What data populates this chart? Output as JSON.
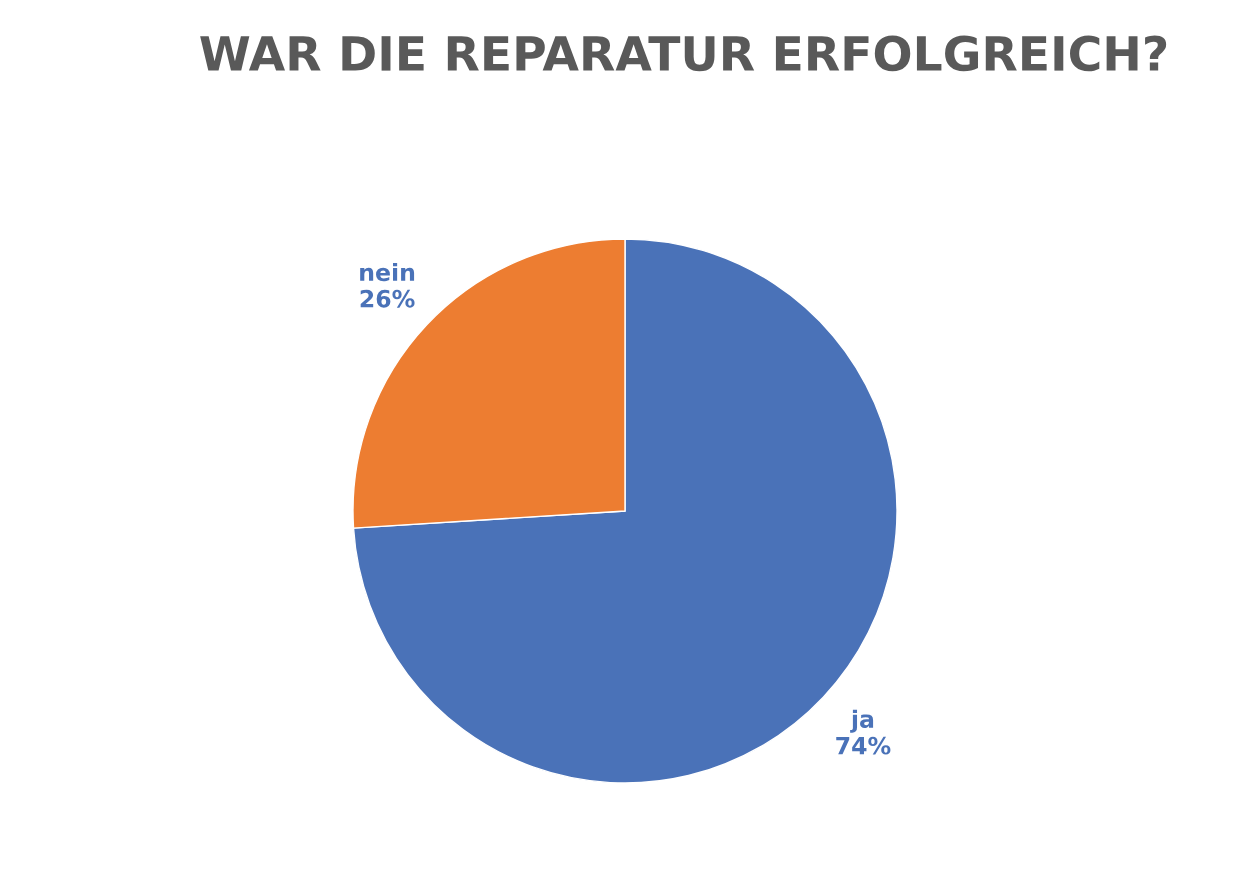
{
  "chart_data": {
    "type": "pie",
    "title": "WAR DIE REPARATUR ERFOLGREICH?",
    "categories": [
      "ja",
      "nein"
    ],
    "values": [
      74,
      26
    ],
    "colors": [
      "#4a72b8",
      "#ed7d31"
    ],
    "value_labels": [
      "74%",
      "26%"
    ],
    "legend": false
  }
}
